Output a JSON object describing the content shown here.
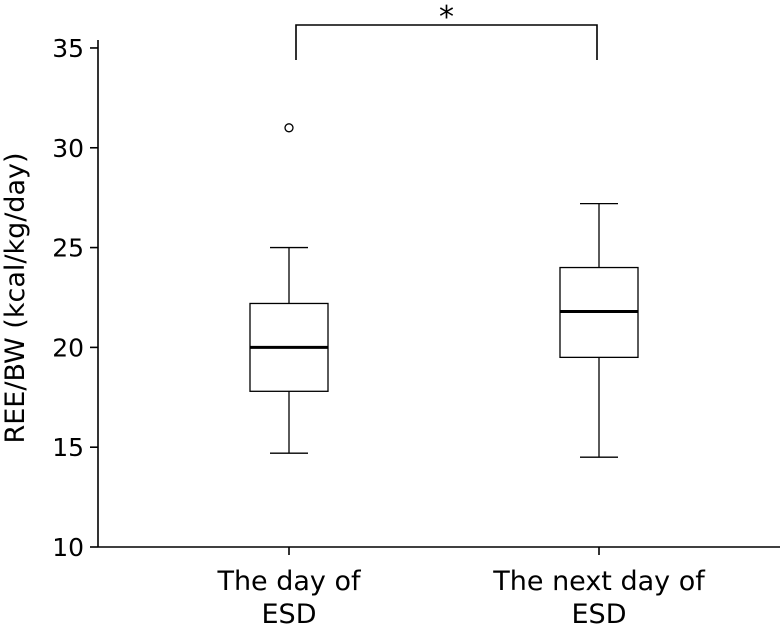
{
  "chart_data": {
    "type": "box",
    "ylabel": "REE/BW (kcal/kg/day)",
    "xlabel": "",
    "ylim": [
      10,
      36
    ],
    "yticks": [
      "10",
      "15",
      "20",
      "25",
      "30",
      "35"
    ],
    "categories": [
      {
        "lines": [
          "The day of",
          "ESD"
        ]
      },
      {
        "lines": [
          "The next day of",
          "ESD"
        ]
      }
    ],
    "boxes": [
      {
        "whisker_low": 14.7,
        "q1": 17.8,
        "median": 20.0,
        "q3": 22.2,
        "whisker_high": 25.0,
        "outliers": [
          31.0
        ]
      },
      {
        "whisker_low": 14.5,
        "q1": 19.5,
        "median": 21.8,
        "q3": 24.0,
        "whisker_high": 27.2,
        "outliers": []
      }
    ],
    "significance": {
      "label": "*",
      "between": [
        0,
        1
      ]
    },
    "grid": false
  }
}
